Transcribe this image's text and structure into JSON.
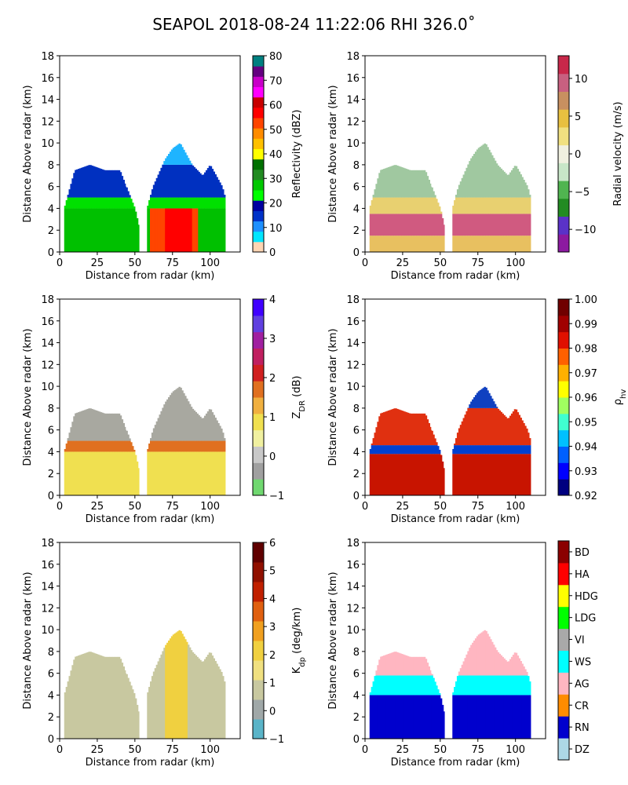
{
  "title": "SEAPOL 2018-08-24 11:22:06 RHI 326.0˚",
  "chart_data": [
    {
      "type": "heatmap",
      "panel": "top-left",
      "xlabel": "Distance from radar (km)",
      "ylabel": "Distance Above radar  (km)",
      "xlim": [
        0,
        120
      ],
      "ylim": [
        0,
        18
      ],
      "xticks": [
        "0",
        "25",
        "50",
        "75",
        "100"
      ],
      "yticks": [
        "0",
        "2",
        "4",
        "6",
        "8",
        "10",
        "12",
        "14",
        "16",
        "18"
      ],
      "colorbar": {
        "label": "Reflectivity (dBZ)",
        "range": [
          0,
          80
        ],
        "ticks": [
          "0",
          "10",
          "20",
          "30",
          "40",
          "50",
          "60",
          "70",
          "80"
        ]
      },
      "echo": {
        "columns": [
          [
            3,
            4
          ],
          [
            10,
            7.5
          ],
          [
            20,
            8
          ],
          [
            30,
            7.5
          ],
          [
            40,
            7.5
          ],
          [
            50,
            4
          ],
          [
            55,
            1
          ],
          [
            58,
            4
          ],
          [
            62,
            6
          ],
          [
            70,
            8.5
          ],
          [
            75,
            9.5
          ],
          [
            80,
            10
          ],
          [
            88,
            8
          ],
          [
            95,
            7
          ],
          [
            100,
            8
          ],
          [
            108,
            6
          ],
          [
            110,
            5
          ]
        ],
        "layers": [
          {
            "from": 0,
            "to": 4,
            "color": "#00c000",
            "hot": [
              [
                60,
                92,
                "#ff4500"
              ],
              [
                70,
                88,
                "#ff0000"
              ]
            ]
          },
          {
            "from": 4,
            "to": 5,
            "color": "#00e000"
          },
          {
            "from": 5,
            "to": 8,
            "color": "#0030c0"
          },
          {
            "from": 8,
            "to": 10.5,
            "color": "#1eb4ff"
          }
        ],
        "gaps": [
          [
            44,
            52,
            6,
            10
          ],
          [
            53,
            58,
            0,
            10
          ]
        ]
      }
    },
    {
      "type": "heatmap",
      "panel": "top-right",
      "xlabel": "Distance from radar (km)",
      "ylabel": "Distance Above radar  (km)",
      "xlim": [
        0,
        120
      ],
      "ylim": [
        0,
        18
      ],
      "xticks": [
        "0",
        "25",
        "50",
        "75",
        "100"
      ],
      "yticks": [
        "0",
        "2",
        "4",
        "6",
        "8",
        "10",
        "12",
        "14",
        "16",
        "18"
      ],
      "colorbar": {
        "label": "Radial velocity (m/s)",
        "range": [
          -13,
          13
        ],
        "ticks": [
          "−10",
          "−5",
          "0",
          "5",
          "10"
        ]
      },
      "echo": {
        "columns": [
          [
            3,
            4
          ],
          [
            10,
            7.5
          ],
          [
            20,
            8
          ],
          [
            30,
            7.5
          ],
          [
            40,
            7.5
          ],
          [
            50,
            4
          ],
          [
            55,
            1
          ],
          [
            58,
            4
          ],
          [
            62,
            6
          ],
          [
            70,
            8.5
          ],
          [
            75,
            9.5
          ],
          [
            80,
            10
          ],
          [
            88,
            8
          ],
          [
            95,
            7
          ],
          [
            100,
            8
          ],
          [
            108,
            6
          ],
          [
            110,
            5
          ]
        ],
        "layers": [
          {
            "from": 0,
            "to": 1.5,
            "color": "#e8c060"
          },
          {
            "from": 1.5,
            "to": 3.5,
            "color": "#d05a80"
          },
          {
            "from": 3.5,
            "to": 5,
            "color": "#e8d070"
          },
          {
            "from": 5,
            "to": 10.5,
            "color": "#a0c8a0"
          }
        ],
        "gaps": [
          [
            44,
            52,
            6,
            10
          ],
          [
            53,
            58,
            0,
            10
          ]
        ]
      }
    },
    {
      "type": "heatmap",
      "panel": "middle-left",
      "xlabel": "Distance from radar (km)",
      "ylabel": "Distance Above radar  (km)",
      "xlim": [
        0,
        120
      ],
      "ylim": [
        0,
        18
      ],
      "xticks": [
        "0",
        "25",
        "50",
        "75",
        "100"
      ],
      "yticks": [
        "0",
        "2",
        "4",
        "6",
        "8",
        "10",
        "12",
        "14",
        "16",
        "18"
      ],
      "colorbar": {
        "label": "Z_DR (dB)",
        "range": [
          -1,
          4
        ],
        "ticks": [
          "−1",
          "0",
          "1",
          "2",
          "3",
          "4"
        ]
      },
      "echo": {
        "columns": [
          [
            3,
            4
          ],
          [
            10,
            7.5
          ],
          [
            20,
            8
          ],
          [
            30,
            7.5
          ],
          [
            40,
            7.5
          ],
          [
            50,
            4
          ],
          [
            55,
            1
          ],
          [
            58,
            4
          ],
          [
            62,
            6
          ],
          [
            70,
            8.5
          ],
          [
            75,
            9.5
          ],
          [
            80,
            10
          ],
          [
            88,
            8
          ],
          [
            95,
            7
          ],
          [
            100,
            8
          ],
          [
            108,
            6
          ],
          [
            110,
            5
          ]
        ],
        "layers": [
          {
            "from": 0,
            "to": 4,
            "color": "#f0e050"
          },
          {
            "from": 4,
            "to": 5,
            "color": "#e07020"
          },
          {
            "from": 5,
            "to": 10.5,
            "color": "#a8a8a0"
          }
        ],
        "gaps": [
          [
            44,
            52,
            6,
            10
          ],
          [
            53,
            58,
            0,
            10
          ]
        ]
      }
    },
    {
      "type": "heatmap",
      "panel": "middle-right",
      "xlabel": "Distance from radar (km)",
      "ylabel": "Distance Above radar  (km)",
      "xlim": [
        0,
        120
      ],
      "ylim": [
        0,
        18
      ],
      "xticks": [
        "0",
        "25",
        "50",
        "75",
        "100"
      ],
      "yticks": [
        "0",
        "2",
        "4",
        "6",
        "8",
        "10",
        "12",
        "14",
        "16",
        "18"
      ],
      "colorbar": {
        "label": "ρ_hv",
        "range": [
          0.92,
          1.0
        ],
        "ticks": [
          "0.92",
          "0.93",
          "0.94",
          "0.95",
          "0.96",
          "0.97",
          "0.98",
          "0.99",
          "1.00"
        ]
      },
      "echo": {
        "columns": [
          [
            3,
            4
          ],
          [
            10,
            7.5
          ],
          [
            20,
            8
          ],
          [
            30,
            7.5
          ],
          [
            40,
            7.5
          ],
          [
            50,
            4
          ],
          [
            55,
            1
          ],
          [
            58,
            4
          ],
          [
            62,
            6
          ],
          [
            70,
            8.5
          ],
          [
            75,
            9.5
          ],
          [
            80,
            10
          ],
          [
            88,
            8
          ],
          [
            95,
            7
          ],
          [
            100,
            8
          ],
          [
            108,
            6
          ],
          [
            110,
            5
          ]
        ],
        "layers": [
          {
            "from": 0,
            "to": 3.8,
            "color": "#c81400"
          },
          {
            "from": 3.8,
            "to": 4.6,
            "color": "#0040d0"
          },
          {
            "from": 4.6,
            "to": 8,
            "color": "#e03010"
          },
          {
            "from": 8,
            "to": 10.5,
            "color": "#1040c0"
          }
        ],
        "gaps": [
          [
            44,
            52,
            6,
            10
          ],
          [
            53,
            58,
            0,
            10
          ]
        ]
      }
    },
    {
      "type": "heatmap",
      "panel": "bottom-left",
      "xlabel": "Distance from radar (km)",
      "ylabel": "Distance Above radar  (km)",
      "xlim": [
        0,
        120
      ],
      "ylim": [
        0,
        18
      ],
      "xticks": [
        "0",
        "25",
        "50",
        "75",
        "100"
      ],
      "yticks": [
        "0",
        "2",
        "4",
        "6",
        "8",
        "10",
        "12",
        "14",
        "16",
        "18"
      ],
      "colorbar": {
        "label": "K_dp (deg/km)",
        "range": [
          -1,
          6
        ],
        "ticks": [
          "−1",
          "0",
          "1",
          "2",
          "3",
          "4",
          "5",
          "6"
        ]
      },
      "echo": {
        "columns": [
          [
            3,
            4
          ],
          [
            10,
            7.5
          ],
          [
            20,
            8
          ],
          [
            30,
            7.5
          ],
          [
            40,
            7.5
          ],
          [
            50,
            4
          ],
          [
            55,
            1
          ],
          [
            58,
            4
          ],
          [
            62,
            6
          ],
          [
            70,
            8.5
          ],
          [
            75,
            9.5
          ],
          [
            80,
            10
          ],
          [
            88,
            8
          ],
          [
            95,
            7
          ],
          [
            100,
            8
          ],
          [
            108,
            6
          ],
          [
            110,
            5
          ]
        ],
        "layers": [
          {
            "from": 0,
            "to": 10.5,
            "color": "#c8c8a0",
            "hot": [
              [
                70,
                85,
                "#f0d040"
              ]
            ]
          }
        ],
        "gaps": [
          [
            44,
            52,
            6,
            10
          ],
          [
            53,
            58,
            0,
            10
          ]
        ]
      }
    },
    {
      "type": "heatmap",
      "panel": "bottom-right",
      "xlabel": "Distance from radar (km)",
      "ylabel": "Distance Above radar  (km)",
      "xlim": [
        0,
        120
      ],
      "ylim": [
        0,
        18
      ],
      "xticks": [
        "0",
        "25",
        "50",
        "75",
        "100"
      ],
      "yticks": [
        "0",
        "2",
        "4",
        "6",
        "8",
        "10",
        "12",
        "14",
        "16",
        "18"
      ],
      "colorbar": {
        "label": "",
        "classes": [
          "DZ",
          "RN",
          "CR",
          "AG",
          "WS",
          "VI",
          "LDG",
          "HDG",
          "HA",
          "BD"
        ]
      },
      "echo": {
        "columns": [
          [
            3,
            4
          ],
          [
            10,
            7.5
          ],
          [
            20,
            8
          ],
          [
            30,
            7.5
          ],
          [
            40,
            7.5
          ],
          [
            50,
            4
          ],
          [
            55,
            1
          ],
          [
            58,
            4
          ],
          [
            62,
            6
          ],
          [
            70,
            8.5
          ],
          [
            75,
            9.5
          ],
          [
            80,
            10
          ],
          [
            88,
            8
          ],
          [
            95,
            7
          ],
          [
            100,
            8
          ],
          [
            108,
            6
          ],
          [
            110,
            5
          ]
        ],
        "layers": [
          {
            "from": 0,
            "to": 4,
            "color": "#0000cd"
          },
          {
            "from": 4,
            "to": 5.8,
            "color": "#00ffff"
          },
          {
            "from": 5.8,
            "to": 10.5,
            "color": "#ffb6c1"
          }
        ],
        "gaps": [
          [
            44,
            52,
            6,
            10
          ],
          [
            53,
            58,
            0,
            10
          ]
        ]
      }
    }
  ],
  "colormaps": {
    "reflectivity": [
      "#ffd5b3",
      "#00e6ff",
      "#1e90ff",
      "#0032c8",
      "#0000a0",
      "#00ff00",
      "#00c800",
      "#228b22",
      "#007000",
      "#ffff00",
      "#ffc000",
      "#ff8c00",
      "#ff4500",
      "#ff0000",
      "#c80000",
      "#ff00ff",
      "#c800c8",
      "#640080",
      "#008080"
    ],
    "velocity": [
      "#8c1aa0",
      "#5a32c8",
      "#228b22",
      "#50b450",
      "#c8e6c8",
      "#f0f0e0",
      "#f0e080",
      "#e8c040",
      "#c89060",
      "#c86080",
      "#c8284a"
    ],
    "zdr": [
      "#70d870",
      "#a0a0a0",
      "#c8c8c8",
      "#f0f0a0",
      "#f0e050",
      "#f0b040",
      "#e07020",
      "#d02020",
      "#c02060",
      "#a020a0",
      "#6040e0",
      "#4000ff"
    ],
    "rhohv": [
      "#000080",
      "#0000ff",
      "#0060ff",
      "#00c0ff",
      "#40ffd0",
      "#a0ff60",
      "#ffff00",
      "#ffb000",
      "#ff6000",
      "#e01000",
      "#a00000",
      "#700000"
    ],
    "kdp": [
      "#5ab4c8",
      "#a0a8a8",
      "#c8c8a0",
      "#f0e080",
      "#f0d040",
      "#f0a020",
      "#e06010",
      "#c02000",
      "#901000",
      "#600000"
    ],
    "hydro": [
      "#add8e6",
      "#0000cd",
      "#ff8c00",
      "#ffb6c1",
      "#00ffff",
      "#a9a9a9",
      "#00ff00",
      "#ffff00",
      "#ff0000",
      "#8b0000"
    ]
  }
}
